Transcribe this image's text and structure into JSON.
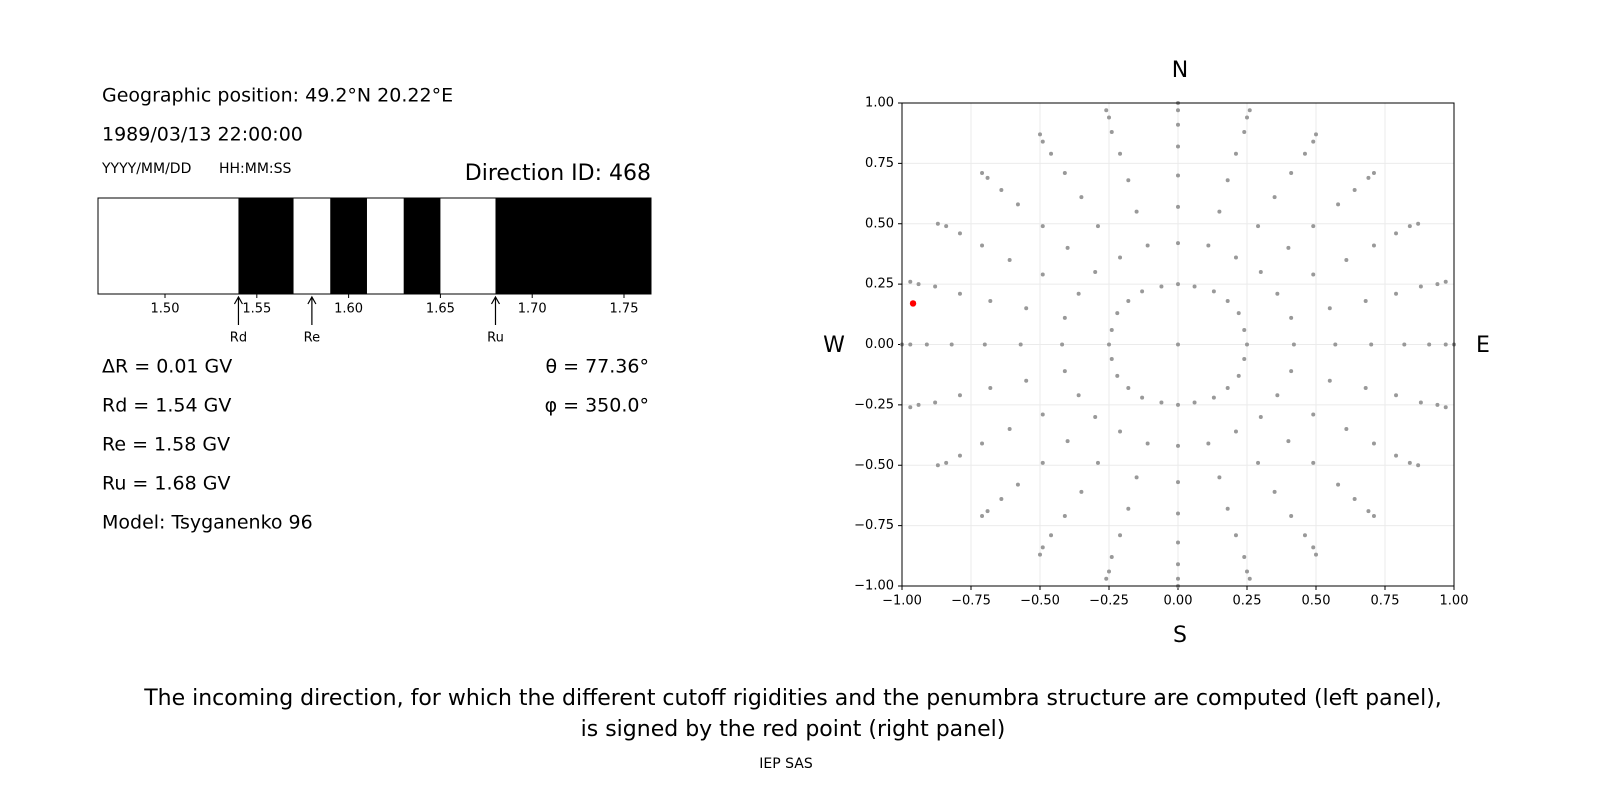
{
  "header": {
    "position": "Geographic position: 49.2°N 20.22°E",
    "datetime": "1989/03/13 22:00:00",
    "date_format": "YYYY/MM/DD",
    "time_format": "HH:MM:SS",
    "direction": "Direction ID: 468"
  },
  "parameters": {
    "left": [
      "ΔR = 0.01 GV",
      "Rd = 1.54 GV",
      "Re = 1.58 GV",
      "Ru = 1.68 GV",
      "Model: Tsyganenko 96"
    ],
    "right": [
      "θ = 77.36°",
      "φ = 350.0°"
    ]
  },
  "chart_data": [
    {
      "type": "penumbra",
      "xlim": [
        1.4635,
        1.7647
      ],
      "color": "#000000",
      "xticks": [
        {
          "value": 1.5,
          "label": "1.50"
        },
        {
          "value": 1.55,
          "label": "1.55"
        },
        {
          "value": 1.6,
          "label": "1.60"
        },
        {
          "value": 1.65,
          "label": "1.65"
        },
        {
          "value": 1.7,
          "label": "1.70"
        },
        {
          "value": 1.75,
          "label": "1.75"
        }
      ],
      "forbidden": [
        [
          1.54,
          1.57
        ],
        [
          1.59,
          1.61
        ],
        [
          1.63,
          1.65
        ],
        [
          1.68,
          1.7647
        ]
      ],
      "markers": [
        {
          "label": "Rd",
          "value": 1.54
        },
        {
          "label": "Re",
          "value": 1.58
        },
        {
          "label": "Ru",
          "value": 1.68
        }
      ]
    },
    {
      "type": "scatter",
      "xlim": [
        -1,
        1
      ],
      "ylim": [
        -1,
        1
      ],
      "grid": true,
      "directions": {
        "N": "N",
        "S": "S",
        "E": "E",
        "W": "W"
      },
      "xticks": [
        {
          "value": -1,
          "label": "−1.00"
        },
        {
          "value": -0.75,
          "label": "−0.75"
        },
        {
          "value": -0.5,
          "label": "−0.50"
        },
        {
          "value": -0.25,
          "label": "−0.25"
        },
        {
          "value": 0,
          "label": "0.00"
        },
        {
          "value": 0.25,
          "label": "0.25"
        },
        {
          "value": 0.5,
          "label": "0.50"
        },
        {
          "value": 0.75,
          "label": "0.75"
        },
        {
          "value": 1,
          "label": "1.00"
        }
      ],
      "yticks": [
        {
          "value": -1,
          "label": "−1.00"
        },
        {
          "value": -0.75,
          "label": "−0.75"
        },
        {
          "value": -0.5,
          "label": "−0.50"
        },
        {
          "value": -0.25,
          "label": "−0.25"
        },
        {
          "value": 0,
          "label": "0.00"
        },
        {
          "value": 0.25,
          "label": "0.25"
        },
        {
          "value": 0.5,
          "label": "0.50"
        },
        {
          "value": 0.75,
          "label": "0.75"
        },
        {
          "value": 1,
          "label": "1.00"
        }
      ],
      "series": [
        {
          "color": "#999999",
          "x": [
            0,
            0.25,
            0.24,
            0.22,
            0.18,
            0.13,
            0.06,
            0,
            -0.06,
            -0.13,
            -0.18,
            -0.22,
            -0.24,
            -0.25,
            -0.24,
            -0.22,
            -0.18,
            -0.13,
            -0.06,
            0,
            0.06,
            0.13,
            0.18,
            0.22,
            0.24,
            0.42,
            0.41,
            0.36,
            0.3,
            0.21,
            0.11,
            0,
            -0.11,
            -0.21,
            -0.3,
            -0.36,
            -0.41,
            -0.42,
            -0.41,
            -0.36,
            -0.3,
            -0.21,
            -0.11,
            0,
            0.11,
            0.21,
            0.3,
            0.36,
            0.41,
            0.57,
            0.55,
            0.49,
            0.4,
            0.29,
            0.15,
            0,
            -0.15,
            -0.29,
            -0.4,
            -0.49,
            -0.55,
            -0.57,
            -0.55,
            -0.49,
            -0.4,
            -0.29,
            -0.15,
            0,
            0.15,
            0.29,
            0.4,
            0.49,
            0.55,
            0.7,
            0.68,
            0.61,
            0.49,
            0.35,
            0.18,
            0,
            -0.18,
            -0.35,
            -0.49,
            -0.61,
            -0.68,
            -0.7,
            -0.68,
            -0.61,
            -0.49,
            -0.35,
            -0.18,
            0,
            0.18,
            0.35,
            0.49,
            0.61,
            0.68,
            0.82,
            0.79,
            0.71,
            0.58,
            0.41,
            0.21,
            0,
            -0.21,
            -0.41,
            -0.58,
            -0.71,
            -0.79,
            -0.82,
            -0.79,
            -0.71,
            -0.58,
            -0.41,
            -0.21,
            0,
            0.21,
            0.41,
            0.58,
            0.71,
            0.79,
            0.91,
            0.88,
            0.79,
            0.64,
            0.46,
            0.24,
            0,
            -0.24,
            -0.46,
            -0.64,
            -0.79,
            -0.88,
            -0.91,
            -0.88,
            -0.79,
            -0.64,
            -0.46,
            -0.24,
            0,
            0.24,
            0.46,
            0.64,
            0.79,
            0.88,
            0.97,
            0.94,
            0.84,
            0.69,
            0.49,
            0.25,
            0,
            -0.25,
            -0.49,
            -0.69,
            -0.84,
            -0.94,
            -0.97,
            -0.94,
            -0.84,
            -0.69,
            -0.49,
            -0.25,
            0,
            0.25,
            0.49,
            0.69,
            0.84,
            0.94,
            1,
            0.97,
            0.87,
            0.71,
            0.5,
            0.26,
            0,
            -0.26,
            -0.5,
            -0.71,
            -0.87,
            -0.97,
            -1,
            -0.97,
            -0.87,
            -0.71,
            -0.5,
            -0.26,
            0,
            0.26,
            0.5,
            0.71,
            0.87,
            0.97
          ],
          "y": [
            0,
            0,
            0.06,
            0.13,
            0.18,
            0.22,
            0.24,
            0.25,
            0.24,
            0.22,
            0.18,
            0.13,
            0.06,
            0,
            -0.06,
            -0.13,
            -0.18,
            -0.22,
            -0.24,
            -0.25,
            -0.24,
            -0.22,
            -0.18,
            -0.13,
            -0.06,
            0,
            0.11,
            0.21,
            0.3,
            0.36,
            0.41,
            0.42,
            0.41,
            0.36,
            0.3,
            0.21,
            0.11,
            0,
            -0.11,
            -0.21,
            -0.3,
            -0.36,
            -0.41,
            -0.42,
            -0.41,
            -0.36,
            -0.3,
            -0.21,
            -0.11,
            0,
            0.15,
            0.29,
            0.4,
            0.49,
            0.55,
            0.57,
            0.55,
            0.49,
            0.4,
            0.29,
            0.15,
            0,
            -0.15,
            -0.29,
            -0.4,
            -0.49,
            -0.55,
            -0.57,
            -0.55,
            -0.49,
            -0.4,
            -0.29,
            -0.15,
            0,
            0.18,
            0.35,
            0.49,
            0.61,
            0.68,
            0.7,
            0.68,
            0.61,
            0.49,
            0.35,
            0.18,
            0,
            -0.18,
            -0.35,
            -0.49,
            -0.61,
            -0.68,
            -0.7,
            -0.68,
            -0.61,
            -0.49,
            -0.35,
            -0.18,
            0,
            0.21,
            0.41,
            0.58,
            0.71,
            0.79,
            0.82,
            0.79,
            0.71,
            0.58,
            0.41,
            0.21,
            0,
            -0.21,
            -0.41,
            -0.58,
            -0.71,
            -0.79,
            -0.82,
            -0.79,
            -0.71,
            -0.58,
            -0.41,
            -0.21,
            0,
            0.24,
            0.46,
            0.64,
            0.79,
            0.88,
            0.91,
            0.88,
            0.79,
            0.64,
            0.46,
            0.24,
            0,
            -0.24,
            -0.46,
            -0.64,
            -0.79,
            -0.88,
            -0.91,
            -0.88,
            -0.79,
            -0.64,
            -0.46,
            -0.24,
            0,
            0.25,
            0.49,
            0.69,
            0.84,
            0.94,
            0.97,
            0.94,
            0.84,
            0.69,
            0.49,
            0.25,
            0,
            -0.25,
            -0.49,
            -0.69,
            -0.84,
            -0.94,
            -0.97,
            -0.94,
            -0.84,
            -0.69,
            -0.49,
            -0.25,
            0,
            0.26,
            0.5,
            0.71,
            0.87,
            0.97,
            1,
            0.97,
            0.87,
            0.71,
            0.5,
            0.26,
            0,
            -0.26,
            -0.5,
            -0.71,
            -0.87,
            -0.97,
            -1,
            -0.97,
            -0.87,
            -0.71,
            -0.5,
            -0.26
          ]
        },
        {
          "color": "#ff0000",
          "x": [
            -0.96
          ],
          "y": [
            0.17
          ]
        }
      ]
    }
  ],
  "caption": [
    "The incoming direction, for which the different cutoff rigidities and the penumbra structure are computed (left panel),",
    "is signed by the red point (right panel)"
  ],
  "credit": "IEP SAS"
}
